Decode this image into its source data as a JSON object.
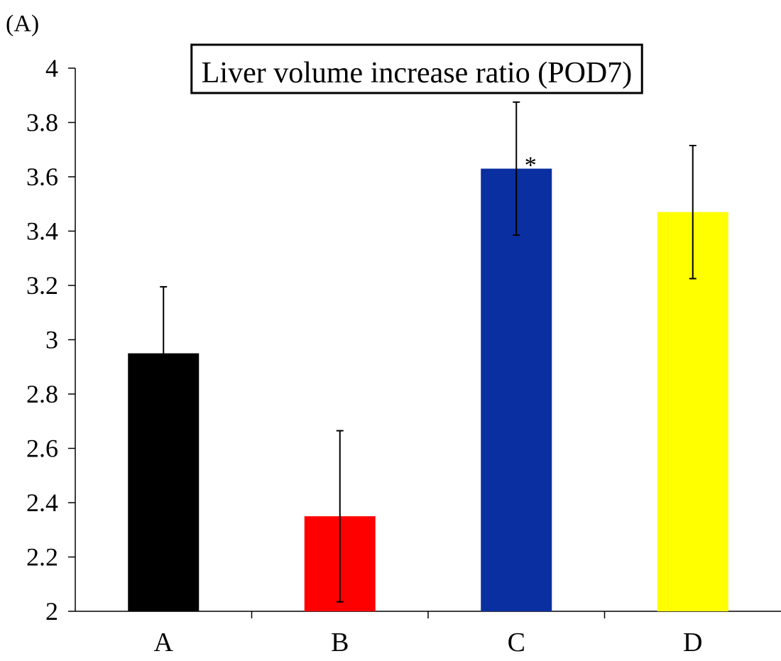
{
  "panel_label": "(A)",
  "chart_data": {
    "type": "bar",
    "title": "Liver volume increase ratio (POD7)",
    "xlabel": "",
    "ylabel": "",
    "ylim": [
      2,
      4
    ],
    "yticks": [
      2,
      2.2,
      2.4,
      2.6,
      2.8,
      3,
      3.2,
      3.4,
      3.6,
      3.8,
      4
    ],
    "ytick_labels": [
      "2",
      "2.2",
      "2.4",
      "2.6",
      "2.8",
      "3",
      "3.2",
      "3.4",
      "3.6",
      "3.8",
      "4"
    ],
    "categories": [
      "A",
      "B",
      "C",
      "D"
    ],
    "values": [
      2.95,
      2.35,
      3.63,
      3.47
    ],
    "errors": [
      0.245,
      0.315,
      0.245,
      0.245
    ],
    "colors": [
      "#000000",
      "#ff0000",
      "#0a2fa0",
      "#ffff00"
    ],
    "annotations": [
      {
        "category": "C",
        "text": "*"
      }
    ],
    "grid": false,
    "legend": "none"
  }
}
